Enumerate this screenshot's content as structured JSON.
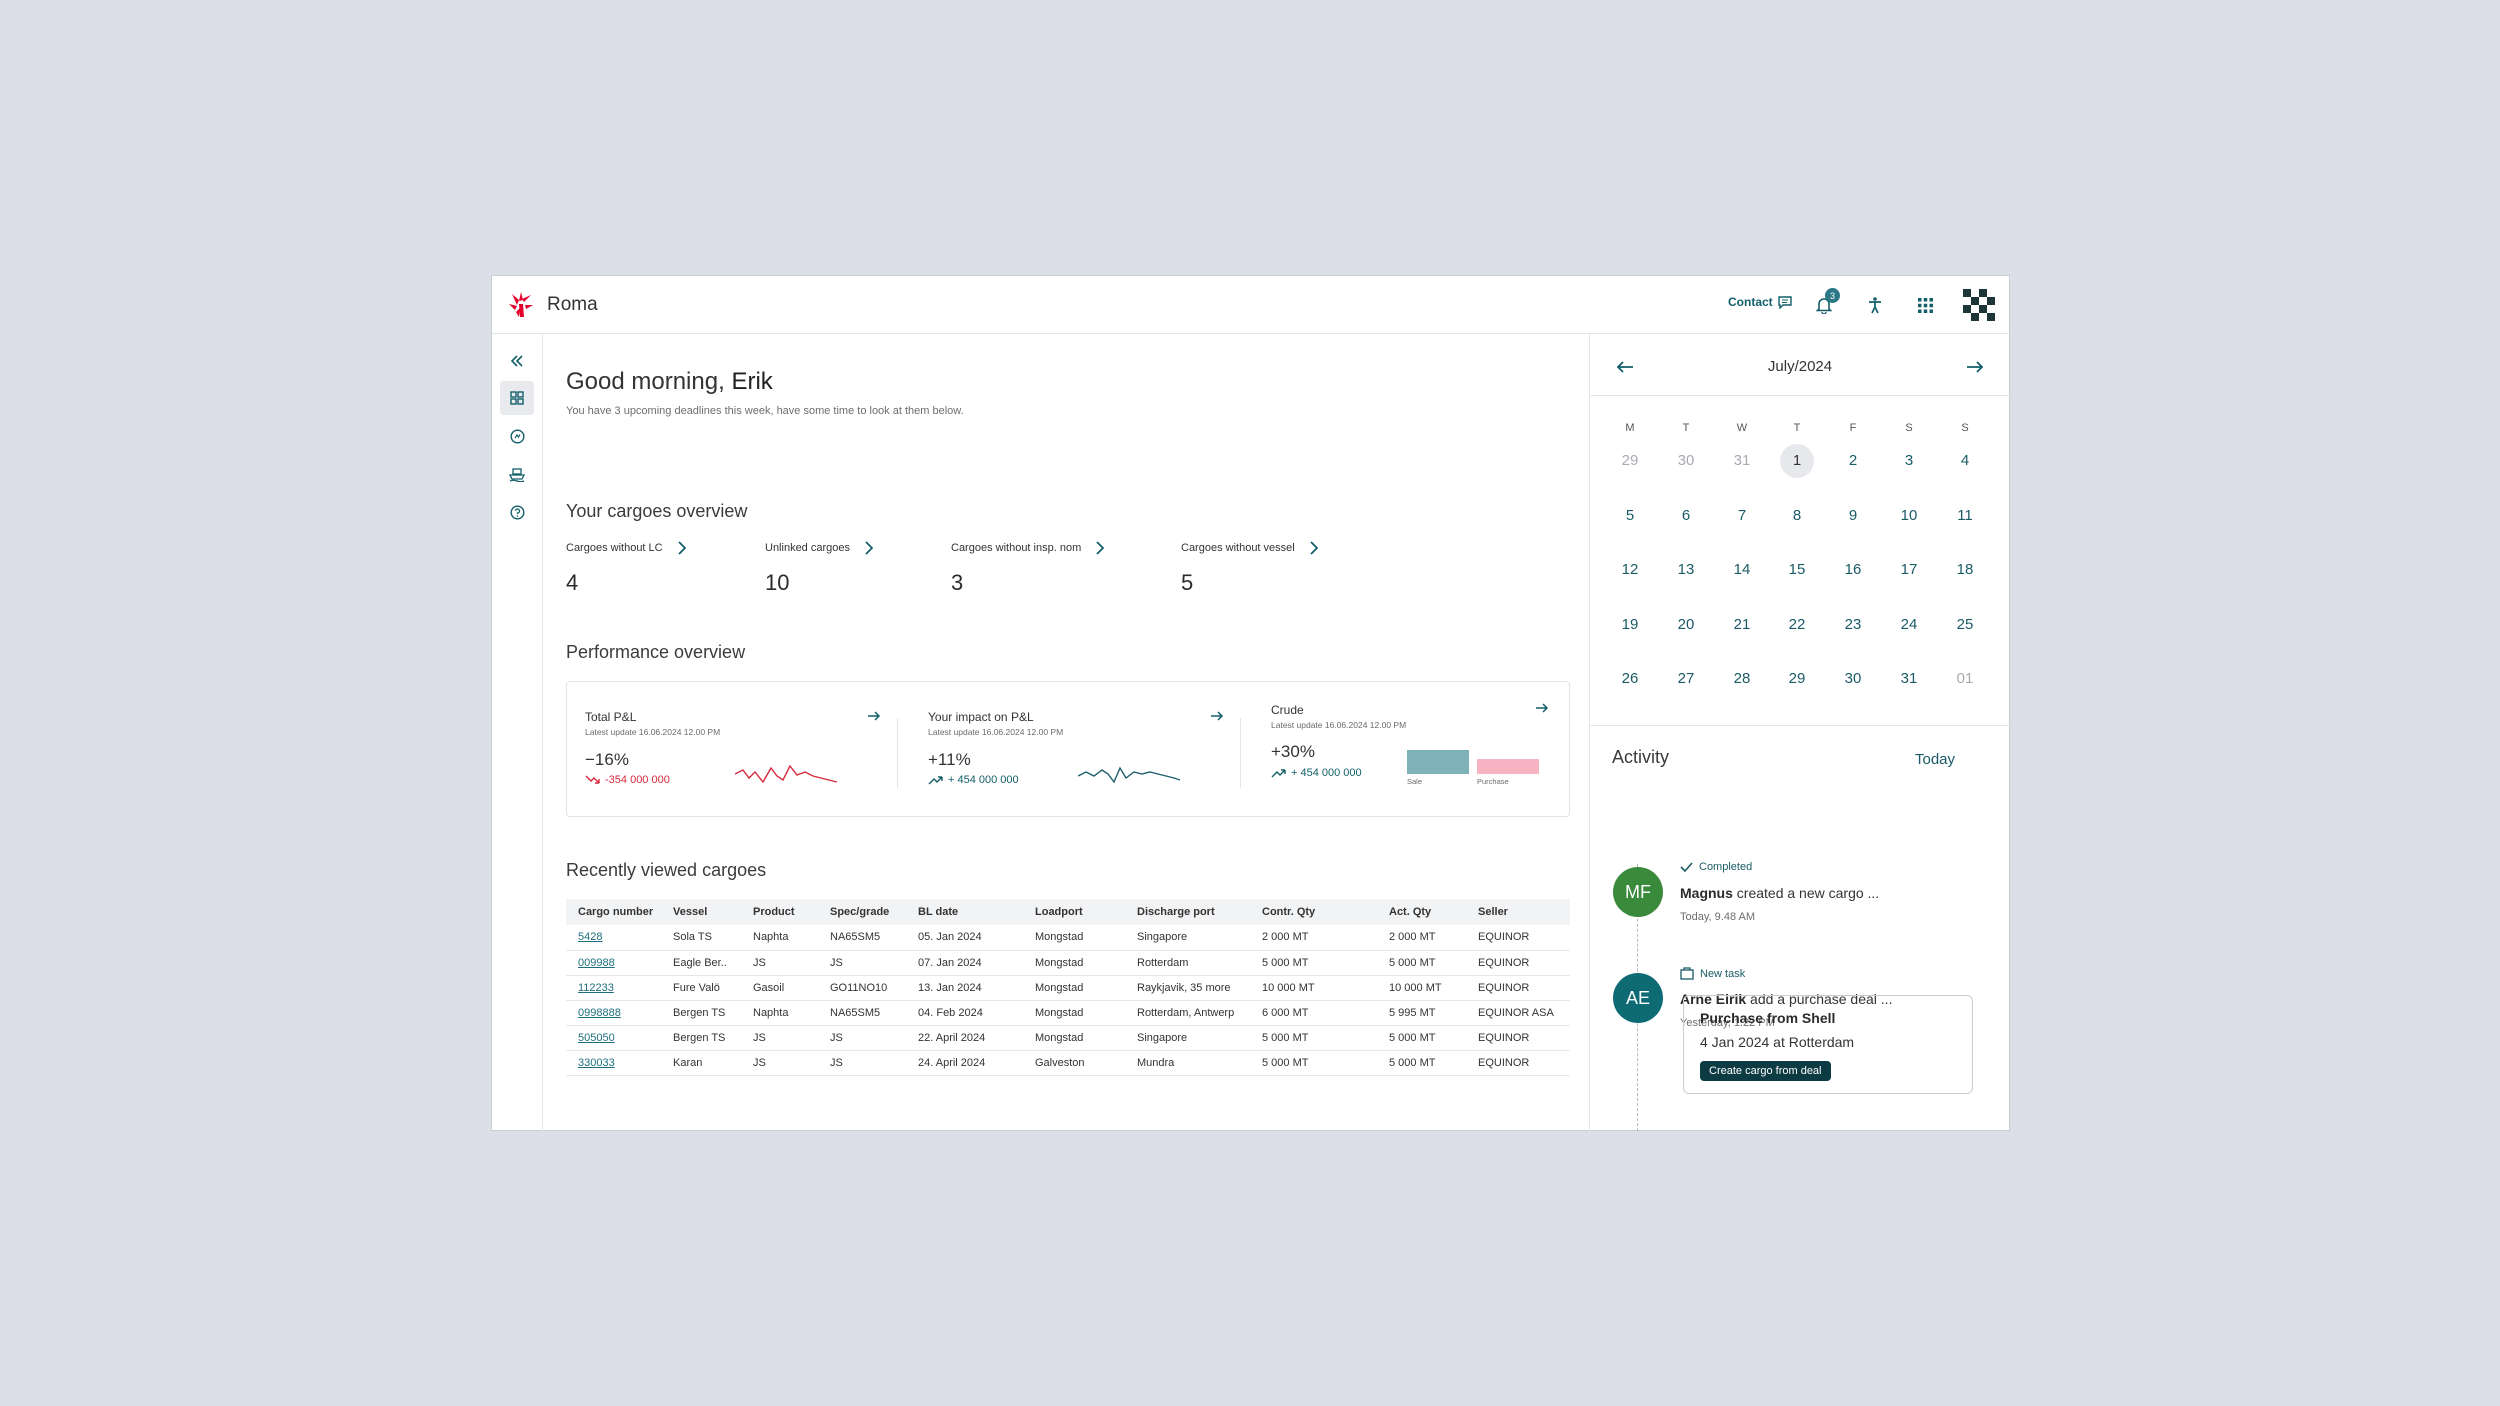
{
  "header": {
    "app_name": "Roma",
    "contact_label": "Contact",
    "notification_count": "3",
    "brand_color": "#e4002b",
    "accent_color": "#125f69"
  },
  "rail": {
    "items": [
      {
        "name": "collapse-icon"
      },
      {
        "name": "dashboard-icon"
      },
      {
        "name": "deals-icon"
      },
      {
        "name": "vessel-icon"
      },
      {
        "name": "help-icon"
      }
    ]
  },
  "main": {
    "greeting_prefix": "Good morning,",
    "user_name": "Erik",
    "subtitle": "You have 3 upcoming deadlines this week, have some time to look at them below.",
    "cargoes_title": "Your cargoes overview",
    "kpis": [
      {
        "label": "Cargoes without LC",
        "value": "4"
      },
      {
        "label": "Unlinked cargoes",
        "value": "10"
      },
      {
        "label": "Cargoes without insp. nom",
        "value": "3"
      },
      {
        "label": "Cargoes without vessel",
        "value": "5"
      }
    ],
    "performance_title": "Performance overview",
    "performance": [
      {
        "name": "Total P&L",
        "update": "Latest update 16.06.2024 12.00 PM",
        "pct": "−16%",
        "abs": "-354 000 000",
        "trend": "down"
      },
      {
        "name": "Your impact on P&L",
        "update": "Latest update 16.06.2024 12.00 PM",
        "pct": "+11%",
        "abs": "+ 454 000 000",
        "trend": "up"
      },
      {
        "name": "Crude",
        "update": "Latest update 16.06.2024 12.00 PM",
        "pct": "+30%",
        "abs": "+ 454 000 000",
        "trend": "up",
        "bars": [
          {
            "label": "Sale",
            "value": 0.86,
            "color": "#7fb1b8"
          },
          {
            "label": "Purchase",
            "value": 0.55,
            "color": "#f7b3c1"
          }
        ]
      }
    ],
    "recent_title": "Recently viewed cargoes",
    "table": {
      "columns": [
        "Cargo number",
        "Vessel",
        "Product",
        "Spec/grade",
        "BL date",
        "Loadport",
        "Discharge port",
        "Contr. Qty",
        "Act. Qty",
        "Seller"
      ],
      "rows": [
        [
          "5428",
          "Sola TS",
          "Naphta",
          "NA65SM5",
          "05. Jan 2024",
          "Mongstad",
          "Singapore",
          "2 000 MT",
          "2 000 MT",
          "EQUINOR"
        ],
        [
          "009988",
          "Eagle Ber..",
          "JS",
          "JS",
          "07. Jan 2024",
          "Mongstad",
          "Rotterdam",
          "5 000 MT",
          "5 000 MT",
          "EQUINOR"
        ],
        [
          "112233",
          "Fure Valö",
          "Gasoil",
          "GO11NO10",
          "13. Jan 2024",
          "Mongstad",
          "Raykjavik, 35 more",
          "10 000 MT",
          "10 000 MT",
          "EQUINOR"
        ],
        [
          "0998888",
          "Bergen TS",
          "Naphta",
          "NA65SM5",
          "04. Feb 2024",
          "Mongstad",
          "Rotterdam, Antwerp",
          "6 000 MT",
          "5 995 MT",
          "EQUINOR ASA"
        ],
        [
          "505050",
          "Bergen TS",
          "JS",
          "JS",
          "22. April 2024",
          "Mongstad",
          "Singapore",
          "5 000 MT",
          "5 000 MT",
          "EQUINOR"
        ],
        [
          "330033",
          "Karan",
          "JS",
          "JS",
          "24. April 2024",
          "Galveston",
          "Mundra",
          "5 000 MT",
          "5 000 MT",
          "EQUINOR"
        ]
      ]
    }
  },
  "calendar": {
    "title": "July/2024",
    "weekdays": [
      "M",
      "T",
      "W",
      "T",
      "F",
      "S",
      "S"
    ],
    "weeks": [
      [
        {
          "d": "29",
          "m": 1
        },
        {
          "d": "30",
          "m": 1
        },
        {
          "d": "31",
          "m": 1
        },
        {
          "d": "1",
          "t": 1
        },
        {
          "d": "2"
        },
        {
          "d": "3"
        },
        {
          "d": "4"
        }
      ],
      [
        {
          "d": "5"
        },
        {
          "d": "6"
        },
        {
          "d": "7"
        },
        {
          "d": "8"
        },
        {
          "d": "9"
        },
        {
          "d": "10"
        },
        {
          "d": "11"
        }
      ],
      [
        {
          "d": "12"
        },
        {
          "d": "13"
        },
        {
          "d": "14"
        },
        {
          "d": "15"
        },
        {
          "d": "16"
        },
        {
          "d": "17"
        },
        {
          "d": "18"
        }
      ],
      [
        {
          "d": "19"
        },
        {
          "d": "20"
        },
        {
          "d": "21"
        },
        {
          "d": "22"
        },
        {
          "d": "23"
        },
        {
          "d": "24"
        },
        {
          "d": "25"
        }
      ],
      [
        {
          "d": "26"
        },
        {
          "d": "27"
        },
        {
          "d": "28"
        },
        {
          "d": "29"
        },
        {
          "d": "30"
        },
        {
          "d": "31"
        },
        {
          "d": "01",
          "m": 1
        }
      ]
    ]
  },
  "activity": {
    "title": "Activity",
    "filter": "Today",
    "items": [
      {
        "initials": "MF",
        "color": "#3a8a3c",
        "status": "Completed",
        "actor": "Magnus",
        "text": " created a new cargo ...",
        "time": "Today, 9.48 AM"
      },
      {
        "initials": "AE",
        "color": "#0f6b73",
        "status": "New task",
        "actor": "Arne Eirik",
        "text": " add a purchase deal ...",
        "time": "Yesterday, 1.22 PM"
      }
    ],
    "deal": {
      "title": "Purchase from Shell",
      "subtitle": "4 Jan 2024 at Rotterdam",
      "button": "Create cargo from deal"
    }
  }
}
